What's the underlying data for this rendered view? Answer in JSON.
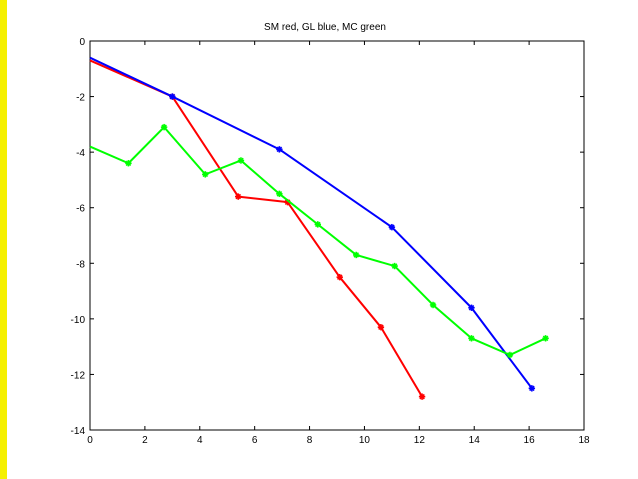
{
  "chart_data": {
    "type": "line",
    "title": "SM red, GL blue, MC green",
    "xlabel": "",
    "ylabel": "",
    "xlim": [
      0,
      18
    ],
    "ylim": [
      -14,
      0
    ],
    "xticks": [
      0,
      2,
      4,
      6,
      8,
      10,
      12,
      14,
      16,
      18
    ],
    "yticks": [
      0,
      -2,
      -4,
      -6,
      -8,
      -10,
      -12,
      -14
    ],
    "grid": false,
    "marker": "asterisk",
    "series": [
      {
        "color": "#ff0000",
        "x": [
          0,
          3.0,
          5.4,
          7.2,
          9.1,
          10.6,
          12.1
        ],
        "y": [
          -0.7,
          -2.0,
          -5.6,
          -5.8,
          -8.5,
          -10.3,
          -12.8
        ]
      },
      {
        "color": "#0000ff",
        "x": [
          0,
          3.0,
          6.9,
          11.0,
          13.9,
          16.1
        ],
        "y": [
          -0.6,
          -2.0,
          -3.9,
          -6.7,
          -9.6,
          -12.5
        ]
      },
      {
        "color": "#00ff00",
        "x": [
          0,
          1.4,
          2.7,
          4.2,
          5.5,
          6.9,
          8.3,
          9.7,
          11.1,
          12.5,
          13.9,
          15.3,
          16.6
        ],
        "y": [
          -3.8,
          -4.4,
          -3.1,
          -4.8,
          -4.3,
          -5.5,
          -6.6,
          -7.7,
          -8.1,
          -9.5,
          -10.7,
          -11.3,
          -10.7
        ]
      }
    ]
  }
}
